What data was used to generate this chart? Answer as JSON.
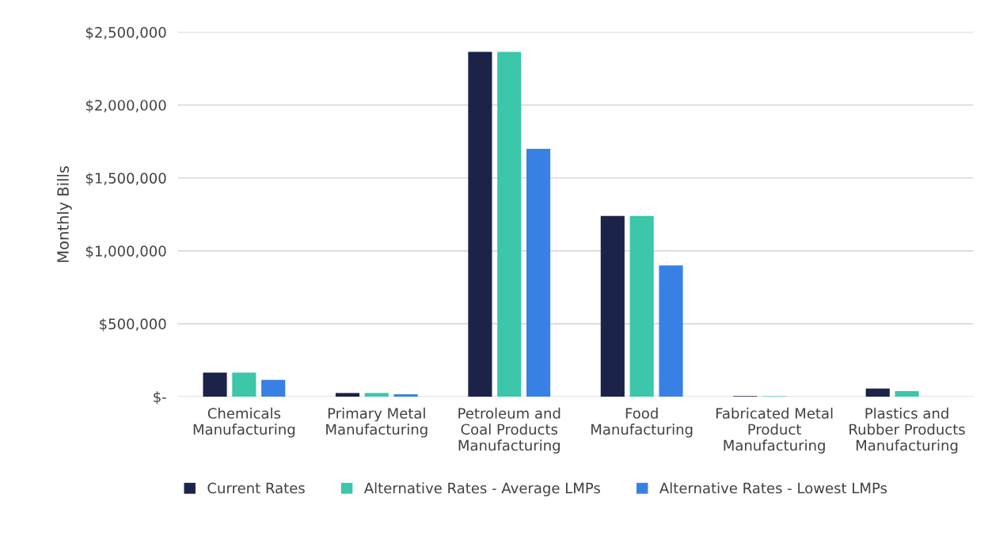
{
  "chart_data": {
    "type": "bar",
    "ylabel": "Monthly Bills",
    "categories": [
      "Chemicals\nManufacturing",
      "Primary Metal\nManufacturing",
      "Petroleum and\nCoal Products\nManufacturing",
      "Food\nManufacturing",
      "Fabricated Metal\nProduct\nManufacturing",
      "Plastics and\nRubber Products\nManufacturing"
    ],
    "series": [
      {
        "name": "Current Rates",
        "color": "#1b2349",
        "values": [
          165000,
          25000,
          2365000,
          1240000,
          4000,
          56000
        ]
      },
      {
        "name": "Alternative Rates - Average LMPs",
        "color": "#3cc6aa",
        "values": [
          165000,
          25000,
          2365000,
          1240000,
          3000,
          38000
        ]
      },
      {
        "name": "Alternative Rates - Lowest LMPs",
        "color": "#3880e4",
        "values": [
          115000,
          16000,
          1700000,
          900000,
          0,
          0
        ]
      }
    ],
    "ylim": [
      0,
      2500000
    ],
    "yticks": [
      {
        "value": 0,
        "label": "$-"
      },
      {
        "value": 500000,
        "label": "$500,000"
      },
      {
        "value": 1000000,
        "label": "$1,000,000"
      },
      {
        "value": 1500000,
        "label": "$1,500,000"
      },
      {
        "value": 2000000,
        "label": "$2,000,000"
      },
      {
        "value": 2500000,
        "label": "$2,500,000"
      }
    ],
    "grid": "y",
    "legend": "bottom"
  }
}
